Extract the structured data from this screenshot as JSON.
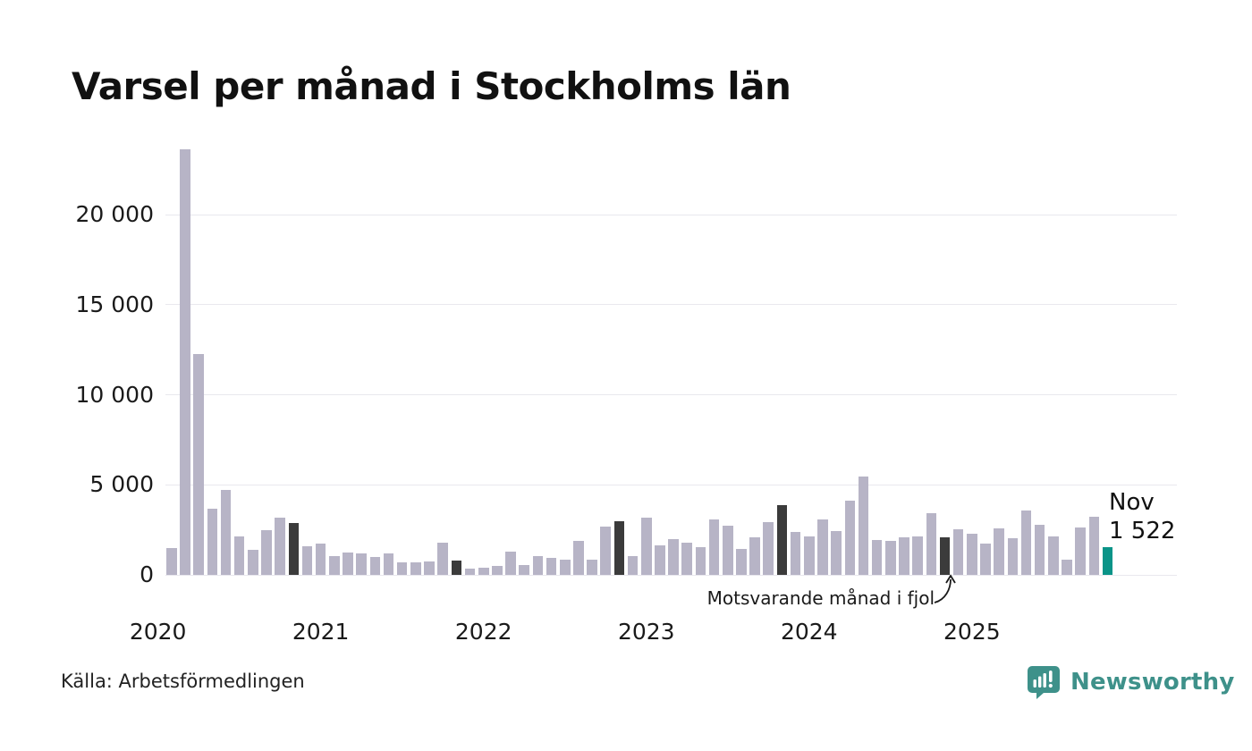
{
  "title": "Varsel per månad i Stockholms län",
  "source": "Källa: Arbetsförmedlingen",
  "annotation": "Motsvarande månad i fjol",
  "latest_label": {
    "month": "Nov",
    "value": "1 522"
  },
  "logo": {
    "text": "Newsworthy"
  },
  "colors": {
    "bar": "#b7b4c6",
    "highlight_dark": "#3b3b3b",
    "latest": "#0a9488",
    "grid": "#e9e8ee",
    "logo": "#3e918a",
    "text": "#1a1a1a"
  },
  "chart_data": {
    "type": "bar",
    "title": "Varsel per månad i Stockholms län",
    "xlabel": "",
    "ylabel": "",
    "ylim": [
      0,
      24000
    ],
    "grid": "horizontal",
    "legend": "none",
    "yticks": [
      {
        "label": "0",
        "value": 0
      },
      {
        "label": "5 000",
        "value": 5000
      },
      {
        "label": "10 000",
        "value": 10000
      },
      {
        "label": "15 000",
        "value": 15000
      },
      {
        "label": "20 000",
        "value": 20000
      }
    ],
    "xticks": [
      {
        "label": "2020",
        "month_index": -1
      },
      {
        "label": "2021",
        "month_index": 11
      },
      {
        "label": "2022",
        "month_index": 23
      },
      {
        "label": "2023",
        "month_index": 35
      },
      {
        "label": "2024",
        "month_index": 47
      },
      {
        "label": "2025",
        "month_index": 59
      }
    ],
    "months": [
      "2020-02",
      "2020-03",
      "2020-04",
      "2020-05",
      "2020-06",
      "2020-07",
      "2020-08",
      "2020-09",
      "2020-10",
      "2020-11",
      "2020-12",
      "2021-01",
      "2021-02",
      "2021-03",
      "2021-04",
      "2021-05",
      "2021-06",
      "2021-07",
      "2021-08",
      "2021-09",
      "2021-10",
      "2021-11",
      "2021-12",
      "2022-01",
      "2022-02",
      "2022-03",
      "2022-04",
      "2022-05",
      "2022-06",
      "2022-07",
      "2022-08",
      "2022-09",
      "2022-10",
      "2022-11",
      "2022-12",
      "2023-01",
      "2023-02",
      "2023-03",
      "2023-04",
      "2023-05",
      "2023-06",
      "2023-07",
      "2023-08",
      "2023-09",
      "2023-10",
      "2023-11",
      "2023-12",
      "2024-01",
      "2024-02",
      "2024-03",
      "2024-04",
      "2024-05",
      "2024-06",
      "2024-07",
      "2024-08",
      "2024-09",
      "2024-10",
      "2024-11",
      "2024-12",
      "2025-01",
      "2025-02",
      "2025-03",
      "2025-04",
      "2025-05",
      "2025-06",
      "2025-07",
      "2025-08",
      "2025-09",
      "2025-10",
      "2025-11"
    ],
    "values": [
      1480,
      23600,
      12260,
      3670,
      4710,
      2140,
      1390,
      2500,
      3200,
      2890,
      1600,
      1750,
      1050,
      1250,
      1200,
      1000,
      1200,
      680,
      700,
      730,
      1800,
      810,
      350,
      400,
      510,
      1280,
      560,
      1060,
      930,
      860,
      1890,
      845,
      2690,
      2970,
      1040,
      3170,
      1660,
      1980,
      1810,
      1560,
      3080,
      2720,
      1430,
      2090,
      2940,
      3880,
      2390,
      2140,
      3080,
      2420,
      4130,
      5470,
      1930,
      1890,
      2100,
      2140,
      3430,
      2090,
      2550,
      2260,
      1730,
      2590,
      2060,
      3580,
      2800,
      2140,
      845,
      2640,
      3220,
      1522
    ],
    "highlight_dark_months": [
      "2020-11",
      "2021-11",
      "2022-11",
      "2023-11",
      "2024-11"
    ],
    "latest_month": "2025-11",
    "latest_value": 1522
  }
}
